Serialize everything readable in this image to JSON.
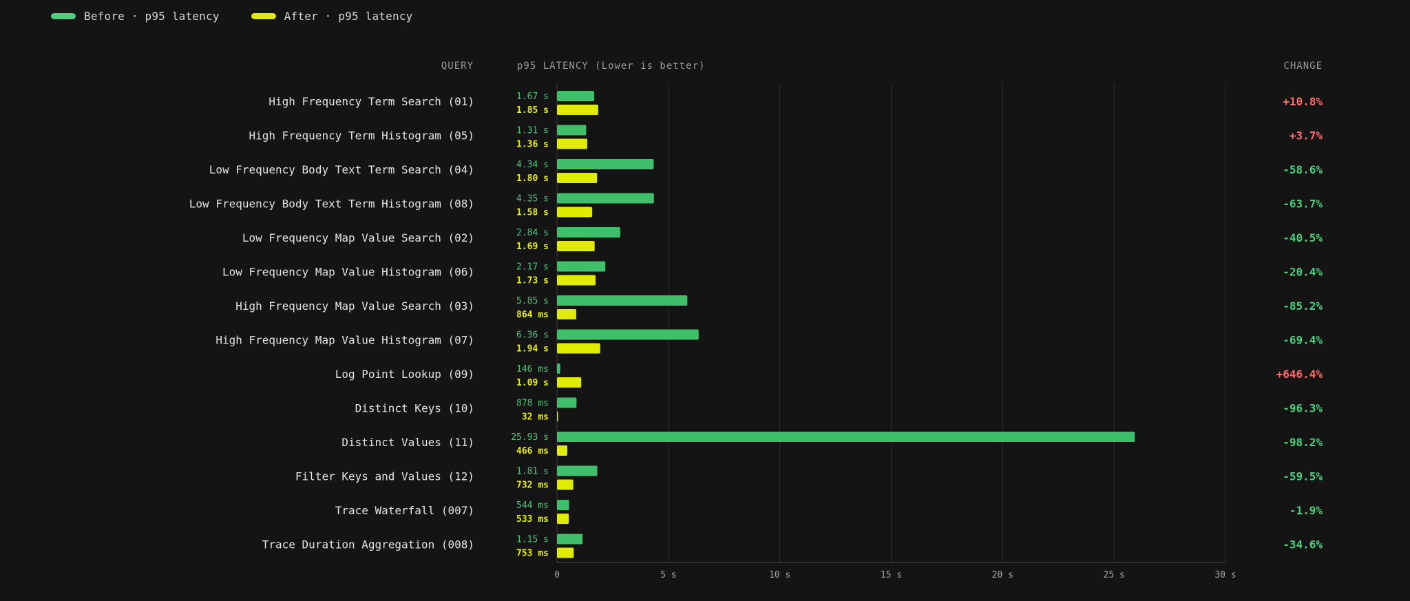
{
  "legend": {
    "before_label": "Before · p95 latency",
    "after_label": "After · p95 latency"
  },
  "headers": {
    "query": "QUERY",
    "latency": "p95 LATENCY (Lower is better)",
    "change": "CHANGE"
  },
  "colors": {
    "background": "#141414",
    "before": "#3fbf6a",
    "after": "#dfec00",
    "positive_change": "#ff6b6b",
    "negative_change": "#4cd07d",
    "grid": "#2e2e2e"
  },
  "chart_data": {
    "type": "bar",
    "orientation": "horizontal",
    "xlabel": "",
    "ylabel": "",
    "xlim": [
      0,
      30
    ],
    "x_unit": "s",
    "x_ticks": [
      "0",
      "5 s",
      "10 s",
      "15 s",
      "20 s",
      "25 s",
      "30 s"
    ],
    "x_tick_values": [
      0,
      5,
      10,
      15,
      20,
      25,
      30
    ],
    "grid": true,
    "legend_position": "top-left",
    "categories": [
      "High Frequency Term Search (01)",
      "High Frequency Term Histogram (05)",
      "Low Frequency Body Text Term Search (04)",
      "Low Frequency Body Text Term Histogram (08)",
      "Low Frequency Map Value Search (02)",
      "Low Frequency Map Value Histogram (06)",
      "High Frequency Map Value Search (03)",
      "High Frequency Map Value Histogram (07)",
      "Log Point Lookup (09)",
      "Distinct Keys (10)",
      "Distinct Values (11)",
      "Filter Keys and Values (12)",
      "Trace Waterfall (007)",
      "Trace Duration Aggregation (008)"
    ],
    "series": [
      {
        "name": "Before · p95 latency",
        "values": [
          1.67,
          1.31,
          4.34,
          4.35,
          2.84,
          2.17,
          5.85,
          6.36,
          0.146,
          0.878,
          25.93,
          1.81,
          0.544,
          1.15
        ],
        "labels": [
          "1.67 s",
          "1.31 s",
          "4.34 s",
          "4.35 s",
          "2.84 s",
          "2.17 s",
          "5.85 s",
          "6.36 s",
          "146 ms",
          "878 ms",
          "25.93 s",
          "1.81 s",
          "544 ms",
          "1.15 s"
        ]
      },
      {
        "name": "After · p95 latency",
        "values": [
          1.85,
          1.36,
          1.8,
          1.58,
          1.69,
          1.73,
          0.864,
          1.94,
          1.09,
          0.032,
          0.466,
          0.732,
          0.533,
          0.753
        ],
        "labels": [
          "1.85 s",
          "1.36 s",
          "1.80 s",
          "1.58 s",
          "1.69 s",
          "1.73 s",
          "864 ms",
          "1.94 s",
          "1.09 s",
          "32 ms",
          "466 ms",
          "732 ms",
          "533 ms",
          "753 ms"
        ]
      }
    ],
    "change": [
      "+10.8%",
      "+3.7%",
      "-58.6%",
      "-63.7%",
      "-40.5%",
      "-20.4%",
      "-85.2%",
      "-69.4%",
      "+646.4%",
      "-96.3%",
      "-98.2%",
      "-59.5%",
      "-1.9%",
      "-34.6%"
    ]
  }
}
